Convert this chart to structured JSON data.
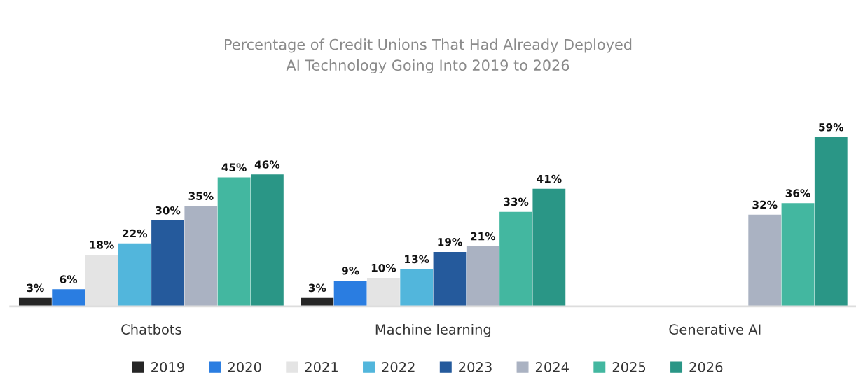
{
  "chart_data": {
    "type": "bar",
    "title": "Percentage of Credit Unions That Had Already Deployed\nAI Technology Going Into 2019 to 2026",
    "categories": [
      "Chatbots",
      "Machine learning",
      "Generative AI"
    ],
    "series": [
      {
        "name": "2019",
        "color": "#262626",
        "values": [
          3,
          3,
          null
        ],
        "value_labels": [
          "3%",
          "3%",
          null
        ]
      },
      {
        "name": "2020",
        "color": "#2a7de1",
        "values": [
          6,
          9,
          null
        ],
        "value_labels": [
          "6%",
          "9%",
          null
        ]
      },
      {
        "name": "2021",
        "color": "#e4e4e4",
        "values": [
          18,
          10,
          null
        ],
        "value_labels": [
          "18%",
          "10%",
          null
        ]
      },
      {
        "name": "2022",
        "color": "#52b6dc",
        "values": [
          22,
          13,
          null
        ],
        "value_labels": [
          "22%",
          "13%",
          null
        ]
      },
      {
        "name": "2023",
        "color": "#255a9c",
        "values": [
          30,
          19,
          null
        ],
        "value_labels": [
          "30%",
          "19%",
          null
        ]
      },
      {
        "name": "2024",
        "color": "#aab2c2",
        "values": [
          35,
          21,
          32
        ],
        "value_labels": [
          "35%",
          "21%",
          "32%"
        ]
      },
      {
        "name": "2025",
        "color": "#43b7a0",
        "values": [
          45,
          33,
          36
        ],
        "value_labels": [
          "45%",
          "33%",
          "36%"
        ]
      },
      {
        "name": "2026",
        "color": "#2a9686",
        "values": [
          46,
          41,
          59
        ],
        "value_labels": [
          "46%",
          "41%",
          "59%"
        ]
      }
    ],
    "legend": "bottom",
    "grid": false
  }
}
